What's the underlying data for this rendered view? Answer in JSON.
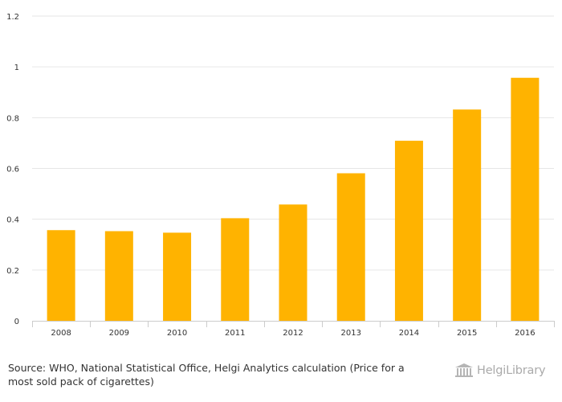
{
  "chart_data": {
    "type": "bar",
    "categories": [
      "2008",
      "2009",
      "2010",
      "2011",
      "2012",
      "2013",
      "2014",
      "2015",
      "2016"
    ],
    "values": [
      0.357,
      0.353,
      0.347,
      0.404,
      0.458,
      0.581,
      0.709,
      0.832,
      0.957
    ],
    "y_ticks": [
      "0",
      "0.2",
      "0.4",
      "0.6",
      "0.8",
      "1",
      "1.2"
    ],
    "ylim": [
      0,
      1.2
    ],
    "grid": true,
    "bar_color": "#FFB300",
    "title": "",
    "xlabel": "",
    "ylabel": ""
  },
  "footer": {
    "source_label": "Source:",
    "source_text": "WHO, National Statistical Office, Helgi Analytics calculation (Price for a most sold pack of cigarettes)",
    "logo_text": "HelgiLibrary"
  },
  "colors": {
    "bar": "#FFB300",
    "grid": "#e6e6e6",
    "axis": "#cccccc",
    "text": "#333333",
    "logo": "#aaaaaa"
  }
}
